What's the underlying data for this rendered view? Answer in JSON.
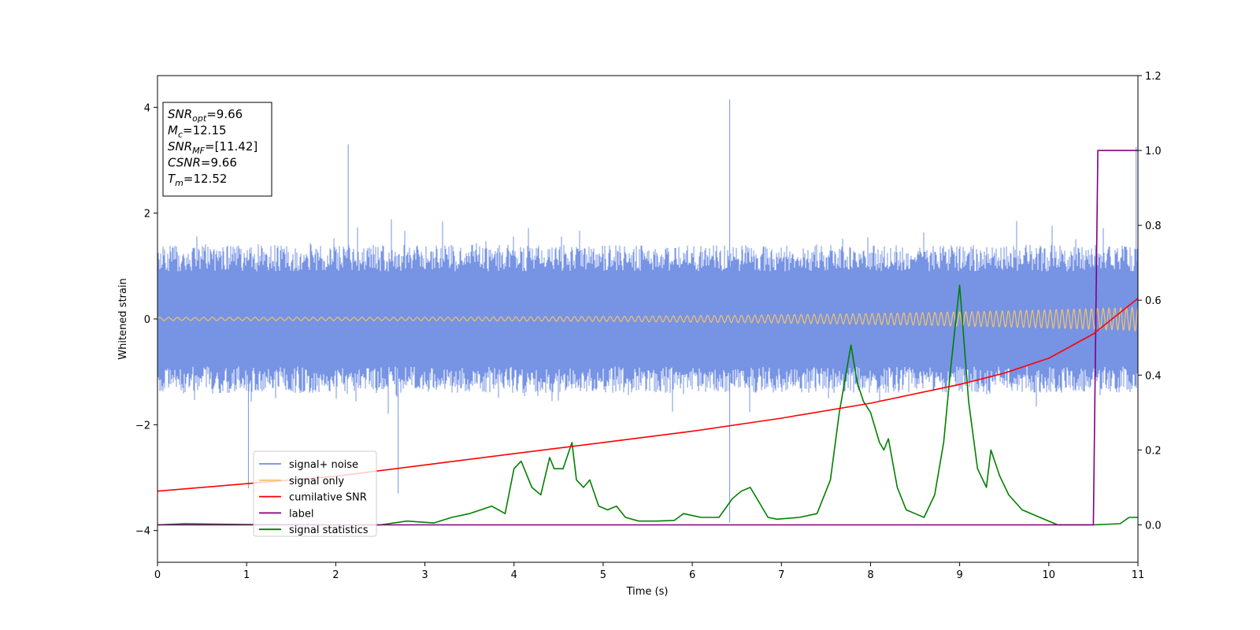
{
  "chart_data": {
    "type": "line",
    "xlabel": "Time (s)",
    "ylabel": "Whitened strain",
    "xlim": [
      0,
      11
    ],
    "ylim_left": [
      -4.6,
      4.6
    ],
    "ylim_right": [
      -0.1,
      1.2
    ],
    "xticks": [
      "0",
      "1",
      "2",
      "3",
      "4",
      "5",
      "6",
      "7",
      "8",
      "9",
      "10",
      "11"
    ],
    "yticks_left": [
      "−4",
      "−2",
      "0",
      "2",
      "4"
    ],
    "yticks_left_values": [
      -4,
      -2,
      0,
      2,
      4
    ],
    "yticks_right": [
      "0.0",
      "0.2",
      "0.4",
      "0.6",
      "0.8",
      "1.0",
      "1.2"
    ],
    "yticks_right_values": [
      0.0,
      0.2,
      0.4,
      0.6,
      0.8,
      1.0,
      1.2
    ],
    "grid": false,
    "legend_position": "lower-left",
    "info_box": [
      {
        "sym": "SNR",
        "sub": "opt",
        "val": "=9.66"
      },
      {
        "sym": "M",
        "sub": "c",
        "val": "=12.15"
      },
      {
        "sym": "SNR",
        "sub": "MF",
        "val": "=[11.42]"
      },
      {
        "sym": "CSNR",
        "sub": "",
        "val": "=9.66"
      },
      {
        "sym": "T",
        "sub": "m",
        "val": "=12.52"
      }
    ],
    "series": [
      {
        "name": "signal+ noise",
        "color": "#6f8de3",
        "axis": "left",
        "style": "noise-envelope",
        "typical_range": [
          -1.9,
          1.9
        ],
        "max": 4.15,
        "min": -3.85
      },
      {
        "name": "signal only",
        "color": "#f5c36b",
        "axis": "left",
        "style": "chirp",
        "amplitude_start": 0.03,
        "amplitude_end": 0.22
      },
      {
        "name": "cumilative SNR",
        "color": "#ff0000",
        "axis": "right",
        "x": [
          0,
          1,
          2,
          3,
          4,
          5,
          6,
          7,
          8,
          9,
          9.5,
          10,
          10.5,
          11
        ],
        "y": [
          0.09,
          0.11,
          0.13,
          0.16,
          0.19,
          0.22,
          0.25,
          0.285,
          0.325,
          0.375,
          0.405,
          0.445,
          0.51,
          0.605
        ]
      },
      {
        "name": "label",
        "color": "#800080",
        "axis": "right",
        "x": [
          0,
          10.5,
          10.55,
          11
        ],
        "y": [
          0.0,
          0.0,
          1.0,
          1.0
        ]
      },
      {
        "name": "signal statistics",
        "color": "#008000",
        "axis": "right",
        "x": [
          0,
          0.3,
          1,
          2,
          2.5,
          2.8,
          3.1,
          3.3,
          3.5,
          3.75,
          3.9,
          4.0,
          4.08,
          4.2,
          4.3,
          4.4,
          4.45,
          4.55,
          4.65,
          4.7,
          4.78,
          4.85,
          4.95,
          5.05,
          5.15,
          5.25,
          5.4,
          5.6,
          5.8,
          5.9,
          6.1,
          6.3,
          6.45,
          6.55,
          6.65,
          6.75,
          6.85,
          6.95,
          7.2,
          7.4,
          7.55,
          7.65,
          7.78,
          7.85,
          7.92,
          8.0,
          8.1,
          8.15,
          8.2,
          8.3,
          8.4,
          8.5,
          8.6,
          8.72,
          8.82,
          8.9,
          9.0,
          9.1,
          9.2,
          9.3,
          9.35,
          9.45,
          9.55,
          9.7,
          9.9,
          10.1,
          10.5,
          10.8,
          10.9,
          11.0
        ],
        "y": [
          0.0,
          0.003,
          0.001,
          0.0,
          0.0,
          0.01,
          0.005,
          0.02,
          0.03,
          0.05,
          0.03,
          0.15,
          0.17,
          0.1,
          0.08,
          0.18,
          0.15,
          0.15,
          0.22,
          0.12,
          0.1,
          0.12,
          0.05,
          0.04,
          0.05,
          0.02,
          0.01,
          0.01,
          0.012,
          0.03,
          0.02,
          0.02,
          0.07,
          0.09,
          0.1,
          0.06,
          0.02,
          0.015,
          0.02,
          0.03,
          0.12,
          0.3,
          0.48,
          0.38,
          0.33,
          0.3,
          0.22,
          0.2,
          0.23,
          0.1,
          0.04,
          0.03,
          0.02,
          0.08,
          0.22,
          0.42,
          0.64,
          0.33,
          0.15,
          0.1,
          0.2,
          0.13,
          0.08,
          0.04,
          0.02,
          0.0,
          0.0,
          0.003,
          0.02,
          0.02
        ]
      }
    ]
  }
}
